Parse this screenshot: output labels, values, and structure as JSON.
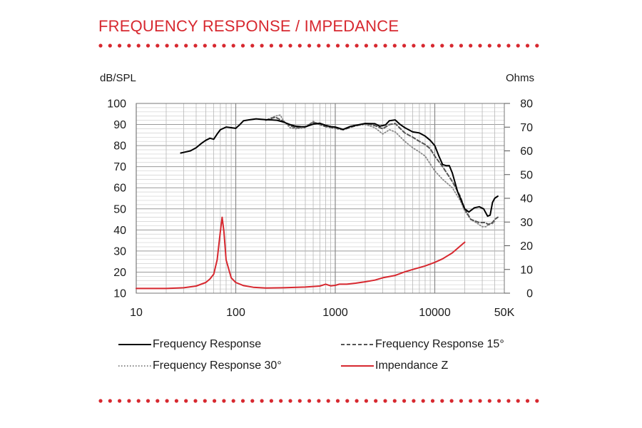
{
  "page": {
    "title": "FREQUENCY RESPONSE / IMPEDANCE"
  },
  "colors": {
    "accent": "#d7282f",
    "fr": "#000000",
    "fr15": "#555555",
    "fr30": "#8a8a8a",
    "impedance": "#d7282f",
    "grid": "#b8b8b8"
  },
  "chart_data": {
    "type": "line",
    "title": "",
    "y_left_label": "dB/SPL",
    "y_right_label": "Ohms",
    "x_scale": "log",
    "xlim": [
      10,
      50000
    ],
    "ylim_left": [
      10,
      100
    ],
    "ylim_right": [
      0,
      80
    ],
    "x_ticks": [
      {
        "value": 10,
        "label": "10"
      },
      {
        "value": 100,
        "label": "100"
      },
      {
        "value": 1000,
        "label": "1000"
      },
      {
        "value": 10000,
        "label": "10000"
      },
      {
        "value": 50000,
        "label": "50K"
      }
    ],
    "y_left_ticks": [
      "10",
      "20",
      "30",
      "40",
      "50",
      "60",
      "70",
      "80",
      "90",
      "100"
    ],
    "y_right_ticks": [
      "0",
      "10",
      "20",
      "30",
      "40",
      "50",
      "60",
      "70",
      "80"
    ],
    "grid": true,
    "legend_position": "bottom",
    "series": [
      {
        "name": "Frequency Response",
        "style": "solid",
        "axis": "left",
        "points": [
          [
            28,
            76.5
          ],
          [
            35,
            77.5
          ],
          [
            40,
            79
          ],
          [
            45,
            81
          ],
          [
            50,
            82.5
          ],
          [
            55,
            83.5
          ],
          [
            60,
            83
          ],
          [
            65,
            85.5
          ],
          [
            70,
            87.5
          ],
          [
            80,
            88.8
          ],
          [
            90,
            88.5
          ],
          [
            100,
            88.2
          ],
          [
            110,
            90
          ],
          [
            120,
            91.8
          ],
          [
            140,
            92.3
          ],
          [
            160,
            92.7
          ],
          [
            180,
            92.5
          ],
          [
            200,
            92.3
          ],
          [
            230,
            92.2
          ],
          [
            260,
            92
          ],
          [
            300,
            91.2
          ],
          [
            350,
            90
          ],
          [
            400,
            89.2
          ],
          [
            450,
            89
          ],
          [
            500,
            88.9
          ],
          [
            600,
            90.2
          ],
          [
            700,
            90.6
          ],
          [
            800,
            89.6
          ],
          [
            900,
            89
          ],
          [
            1000,
            88.8
          ],
          [
            1200,
            87.7
          ],
          [
            1400,
            89
          ],
          [
            1600,
            89.6
          ],
          [
            2000,
            90.5
          ],
          [
            2500,
            90.4
          ],
          [
            2800,
            89.2
          ],
          [
            3200,
            89.8
          ],
          [
            3500,
            91.8
          ],
          [
            4000,
            92.2
          ],
          [
            4500,
            90
          ],
          [
            5000,
            88.5
          ],
          [
            6000,
            86.5
          ],
          [
            7000,
            86
          ],
          [
            8000,
            84.5
          ],
          [
            9000,
            82.5
          ],
          [
            10000,
            80
          ],
          [
            11000,
            75
          ],
          [
            12000,
            71
          ],
          [
            13000,
            70.5
          ],
          [
            14000,
            70.5
          ],
          [
            15000,
            67
          ],
          [
            17000,
            58
          ],
          [
            20000,
            50
          ],
          [
            22000,
            48.5
          ],
          [
            25000,
            50.5
          ],
          [
            28000,
            51
          ],
          [
            31000,
            50
          ],
          [
            34000,
            46.5
          ],
          [
            36000,
            47
          ],
          [
            38000,
            53
          ],
          [
            40000,
            55
          ],
          [
            43000,
            56
          ]
        ]
      },
      {
        "name": "Frequency Response 15°",
        "style": "dashed",
        "axis": "left",
        "points": [
          [
            200,
            92
          ],
          [
            250,
            93.5
          ],
          [
            300,
            91.5
          ],
          [
            350,
            89.5
          ],
          [
            400,
            88.5
          ],
          [
            500,
            89
          ],
          [
            600,
            91
          ],
          [
            700,
            90
          ],
          [
            800,
            89
          ],
          [
            1000,
            88.5
          ],
          [
            1200,
            87.5
          ],
          [
            1500,
            89
          ],
          [
            2000,
            90.5
          ],
          [
            2500,
            89.5
          ],
          [
            3000,
            88
          ],
          [
            3500,
            90
          ],
          [
            4000,
            90.5
          ],
          [
            5000,
            86
          ],
          [
            6000,
            84
          ],
          [
            7000,
            82
          ],
          [
            8000,
            80.5
          ],
          [
            9000,
            78.5
          ],
          [
            10000,
            75
          ],
          [
            12000,
            70
          ],
          [
            15000,
            63
          ],
          [
            18000,
            56
          ],
          [
            20000,
            50
          ],
          [
            23000,
            45
          ],
          [
            28000,
            43.5
          ],
          [
            32000,
            43.5
          ],
          [
            35000,
            42.5
          ],
          [
            38000,
            43.5
          ],
          [
            40000,
            45
          ],
          [
            43000,
            46
          ]
        ]
      },
      {
        "name": "Frequency Response 30°",
        "style": "dotted",
        "axis": "left",
        "points": [
          [
            200,
            92
          ],
          [
            250,
            94
          ],
          [
            280,
            94.5
          ],
          [
            300,
            92
          ],
          [
            350,
            88.5
          ],
          [
            400,
            88
          ],
          [
            500,
            88.5
          ],
          [
            600,
            91.5
          ],
          [
            700,
            90
          ],
          [
            800,
            89
          ],
          [
            1000,
            88
          ],
          [
            1200,
            87.5
          ],
          [
            1500,
            89.5
          ],
          [
            2000,
            90
          ],
          [
            2500,
            88.5
          ],
          [
            3000,
            85.5
          ],
          [
            3500,
            87.5
          ],
          [
            4000,
            86.5
          ],
          [
            5000,
            82
          ],
          [
            6000,
            79
          ],
          [
            7000,
            77
          ],
          [
            8000,
            75
          ],
          [
            10000,
            68
          ],
          [
            12000,
            64
          ],
          [
            15000,
            60
          ],
          [
            18000,
            54
          ],
          [
            20000,
            49
          ],
          [
            23000,
            45
          ],
          [
            26000,
            43.5
          ],
          [
            30000,
            41.5
          ],
          [
            33000,
            41.5
          ],
          [
            35000,
            43
          ],
          [
            38000,
            43
          ],
          [
            40000,
            44
          ]
        ]
      },
      {
        "name": "Impendance Z",
        "style": "solid",
        "axis": "right",
        "points": [
          [
            10,
            2
          ],
          [
            20,
            2
          ],
          [
            30,
            2.3
          ],
          [
            40,
            3
          ],
          [
            50,
            4.5
          ],
          [
            55,
            6
          ],
          [
            60,
            8
          ],
          [
            65,
            14
          ],
          [
            70,
            26
          ],
          [
            73,
            32
          ],
          [
            76,
            26
          ],
          [
            80,
            14
          ],
          [
            90,
            6.5
          ],
          [
            100,
            4.5
          ],
          [
            120,
            3.2
          ],
          [
            150,
            2.5
          ],
          [
            200,
            2.2
          ],
          [
            300,
            2.3
          ],
          [
            500,
            2.6
          ],
          [
            700,
            3
          ],
          [
            800,
            3.8
          ],
          [
            900,
            3.1
          ],
          [
            1000,
            3.3
          ],
          [
            1100,
            3.8
          ],
          [
            1300,
            3.8
          ],
          [
            1600,
            4.2
          ],
          [
            2000,
            4.8
          ],
          [
            2500,
            5.5
          ],
          [
            3000,
            6.5
          ],
          [
            4000,
            7.5
          ],
          [
            5000,
            9
          ],
          [
            6000,
            10
          ],
          [
            8000,
            11.5
          ],
          [
            10000,
            13
          ],
          [
            12000,
            14.5
          ],
          [
            15000,
            17
          ],
          [
            20000,
            21.5
          ]
        ]
      }
    ]
  }
}
